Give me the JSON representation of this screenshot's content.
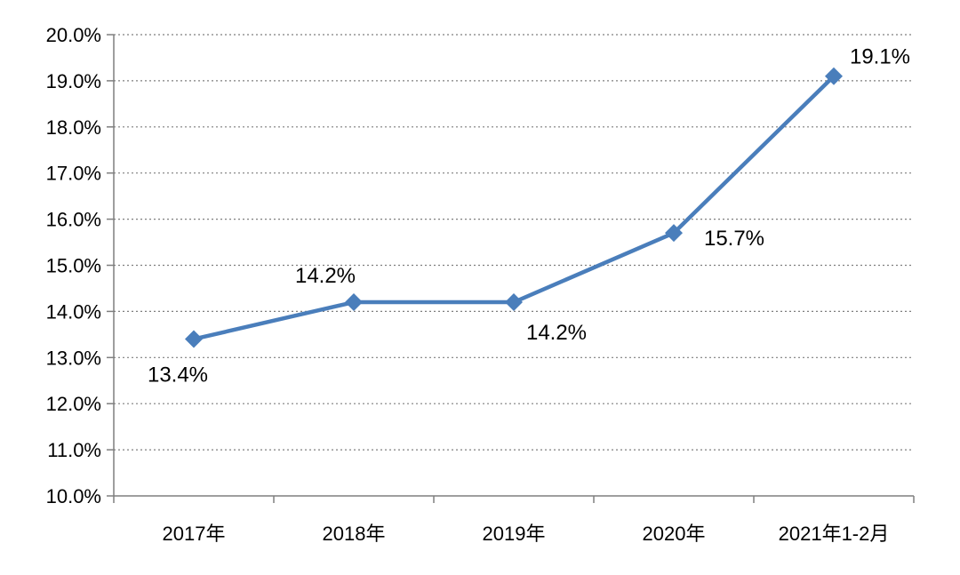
{
  "chart_data": {
    "type": "line",
    "categories": [
      "2017年",
      "2018年",
      "2019年",
      "2020年",
      "2021年1-2月"
    ],
    "series": [
      {
        "values": [
          13.4,
          14.2,
          14.2,
          15.7,
          19.1
        ]
      }
    ],
    "data_labels": [
      "13.4%",
      "14.2%",
      "14.2%",
      "15.7%",
      "19.1%"
    ],
    "y_ticks": [
      "10.0%",
      "11.0%",
      "12.0%",
      "13.0%",
      "14.0%",
      "15.0%",
      "16.0%",
      "17.0%",
      "18.0%",
      "19.0%",
      "20.0%"
    ],
    "ylim": [
      10,
      20
    ],
    "grid": true,
    "line_color": "#4A7EBB",
    "axis_color": "#7F7F7F",
    "grid_color": "#7F7F7F"
  }
}
